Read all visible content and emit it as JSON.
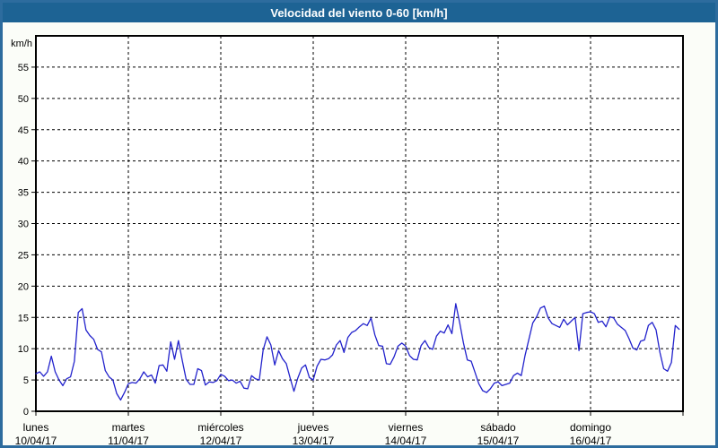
{
  "title_bar": {
    "text": "Velocidad del viento 0-60 [km/h]"
  },
  "colors": {
    "frame_border": "#2d6c9e",
    "title_bar_bg": "#1d6394",
    "title_text": "#ffffff",
    "panel_bg": "#fbfdf8",
    "plot_bg": "#ffffff",
    "axis_and_grid": "#000000",
    "line": "#2222cc"
  },
  "chart_data": {
    "type": "line",
    "title": "Velocidad del viento 0-60 [km/h]",
    "ylabel": "km/h",
    "ylim": [
      0,
      60
    ],
    "ytick_step": 5,
    "ytick_labels": [
      "0",
      "5",
      "10",
      "15",
      "20",
      "25",
      "30",
      "35",
      "40",
      "45",
      "50",
      "55"
    ],
    "grid": "dashed",
    "legend": "none",
    "x_days": [
      {
        "weekday": "lunes",
        "date": "10/04/17"
      },
      {
        "weekday": "martes",
        "date": "11/04/17"
      },
      {
        "weekday": "miércoles",
        "date": "12/04/17"
      },
      {
        "weekday": "jueves",
        "date": "13/04/17"
      },
      {
        "weekday": "viernes",
        "date": "14/04/17"
      },
      {
        "weekday": "sábado",
        "date": "15/04/17"
      },
      {
        "weekday": "domingo",
        "date": "16/04/17"
      }
    ],
    "points_per_day": 24,
    "series": [
      {
        "name": "velocidad del viento (km/h)",
        "color": "#2222cc",
        "values": [
          6.0,
          6.3,
          5.6,
          6.3,
          8.8,
          6.3,
          5.0,
          4.1,
          5.2,
          5.5,
          8.0,
          15.8,
          16.4,
          13.0,
          12.1,
          11.5,
          9.9,
          9.5,
          6.5,
          5.5,
          5.0,
          2.8,
          1.8,
          3.0,
          4.4,
          4.6,
          4.5,
          5.2,
          6.3,
          5.5,
          5.8,
          4.5,
          7.3,
          7.4,
          6.4,
          11.1,
          8.3,
          11.3,
          8.1,
          5.1,
          4.3,
          4.3,
          6.8,
          6.5,
          4.2,
          4.7,
          4.6,
          4.9,
          5.9,
          5.6,
          4.9,
          5.0,
          4.5,
          4.8,
          3.7,
          3.6,
          5.7,
          5.2,
          5.0,
          9.8,
          11.9,
          10.6,
          7.4,
          9.7,
          8.4,
          7.6,
          5.3,
          3.2,
          5.3,
          6.9,
          7.4,
          5.4,
          5.0,
          7.2,
          8.3,
          8.2,
          8.4,
          9.0,
          10.6,
          11.3,
          9.4,
          11.8,
          12.6,
          12.9,
          13.5,
          14.0,
          13.7,
          14.9,
          12.2,
          10.5,
          10.4,
          7.6,
          7.5,
          8.7,
          10.4,
          10.9,
          10.4,
          8.9,
          8.3,
          8.2,
          10.5,
          11.3,
          10.2,
          9.9,
          12.0,
          12.8,
          12.5,
          13.8,
          12.4,
          17.2,
          14.2,
          10.9,
          8.2,
          8.0,
          6.2,
          4.4,
          3.3,
          3.0,
          3.6,
          4.5,
          4.7,
          4.1,
          4.3,
          4.5,
          5.7,
          6.1,
          5.7,
          8.9,
          11.5,
          14.1,
          15.1,
          16.5,
          16.8,
          14.9,
          14.0,
          13.7,
          13.4,
          14.7,
          13.8,
          14.4,
          15.0,
          9.7,
          15.6,
          15.8,
          15.9,
          15.6,
          14.2,
          14.4,
          13.5,
          15.1,
          14.9,
          13.9,
          13.4,
          12.9,
          11.6,
          10.1,
          9.8,
          11.2,
          11.4,
          13.7,
          14.2,
          13.0,
          9.4,
          6.8,
          6.4,
          7.8,
          13.7,
          13.1
        ]
      }
    ]
  }
}
